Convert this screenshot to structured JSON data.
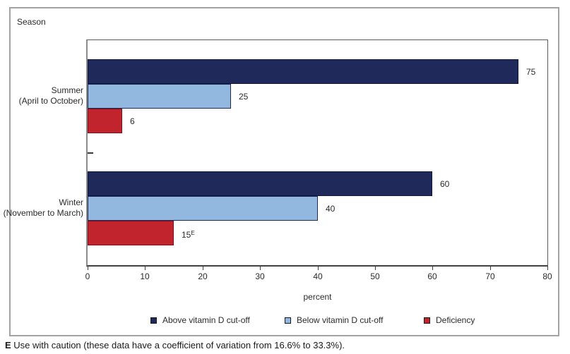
{
  "figure": {
    "y_axis_title": "Season",
    "footnote": {
      "marker": "E",
      "text": " Use with caution (these data have a coefficient of variation from 16.6% to 33.3%)."
    }
  },
  "chart_data": {
    "type": "bar",
    "orientation": "horizontal",
    "title": "",
    "xlabel": "percent",
    "ylabel": "Season",
    "categories": [
      "Summer (April to October)",
      "Winter (November to March)"
    ],
    "category_lines": [
      [
        "Summer",
        "(April to October)"
      ],
      [
        "Winter",
        "(November to March)"
      ]
    ],
    "series": [
      {
        "name": "Above vitamin D cut-off",
        "color": "#1f2a5b",
        "border": "#11173a",
        "values": [
          75,
          60
        ],
        "labels": [
          "75",
          "60"
        ],
        "label_sups": [
          "",
          ""
        ]
      },
      {
        "name": "Below vitamin D cut-off",
        "color": "#93b8e0",
        "border": "#1f2a5b",
        "values": [
          25,
          40
        ],
        "labels": [
          "25",
          "40"
        ],
        "label_sups": [
          "",
          ""
        ]
      },
      {
        "name": "Deficiency",
        "color": "#c2242e",
        "border": "#7d1119",
        "values": [
          6,
          15
        ],
        "labels": [
          "6",
          "15"
        ],
        "label_sups": [
          "",
          "E"
        ]
      }
    ],
    "xlim": [
      0,
      80
    ],
    "x_ticks": [
      0,
      10,
      20,
      30,
      40,
      50,
      60,
      70,
      80
    ],
    "grid": false,
    "legend_position": "bottom"
  }
}
